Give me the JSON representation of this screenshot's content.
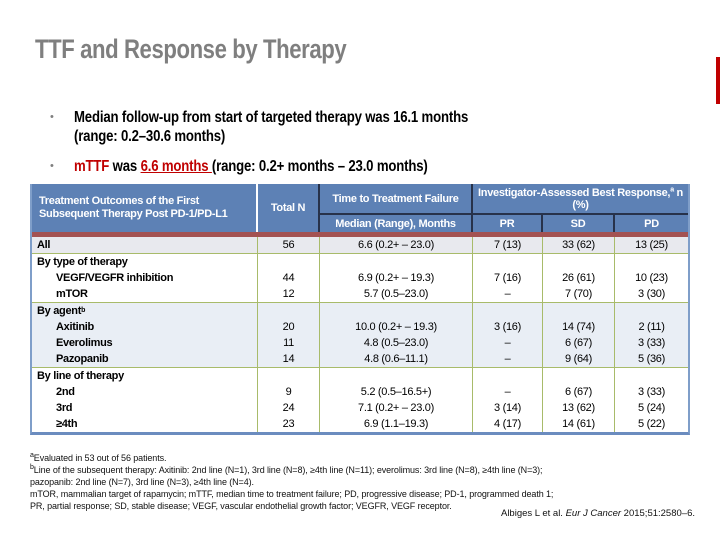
{
  "title": "TTF and Response by Therapy",
  "bullets": {
    "b1_line1": "Median follow-up from start of targeted therapy was 16.1 months",
    "b1_line2": "(range: 0.2–30.6 months)",
    "b2_red": "mTTF",
    "b2_mid": " was ",
    "b2_hl": "6.6 months ",
    "b2_rest": "(range: 0.2+ months – 23.0 months)",
    "marker": "•"
  },
  "table": {
    "header": {
      "col1": "Treatment Outcomes of the First Subsequent Therapy Post PD-1/PD-L1",
      "total_n": "Total N",
      "ttf_group": "Time to Treatment Failure",
      "ttf_sub": "Median (Range), Months",
      "resp_group_1": "Investigator-Assessed Best Response,",
      "resp_sup": "a",
      "resp_group_2": " n",
      "resp_pct": "(%)",
      "pr": "PR",
      "sd": "SD",
      "pd": "PD"
    },
    "rows": [
      {
        "label": "All",
        "sup": "",
        "n": "56",
        "ttf": "6.6 (0.2+ – 23.0)",
        "pr": "7 (13)",
        "sd": "33 (62)",
        "pd": "13 (25)"
      },
      {
        "label": "By type of therapy",
        "sup": "",
        "n": "",
        "ttf": "",
        "pr": "",
        "sd": "",
        "pd": ""
      },
      {
        "label": "VEGF/VEGFR inhibition",
        "sup": "",
        "n": "44",
        "ttf": "6.9 (0.2+ – 19.3)",
        "pr": "7 (16)",
        "sd": "26 (61)",
        "pd": "10 (23)"
      },
      {
        "label": "mTOR",
        "sup": "",
        "n": "12",
        "ttf": "5.7 (0.5–23.0)",
        "pr": "–",
        "sd": "7 (70)",
        "pd": "3 (30)"
      },
      {
        "label": "By agent",
        "sup": "b",
        "n": "",
        "ttf": "",
        "pr": "",
        "sd": "",
        "pd": ""
      },
      {
        "label": "Axitinib",
        "sup": "",
        "n": "20",
        "ttf": "10.0 (0.2+ – 19.3)",
        "pr": "3 (16)",
        "sd": "14 (74)",
        "pd": "2 (11)"
      },
      {
        "label": "Everolimus",
        "sup": "",
        "n": "11",
        "ttf": "4.8 (0.5–23.0)",
        "pr": "–",
        "sd": "6 (67)",
        "pd": "3 (33)"
      },
      {
        "label": "Pazopanib",
        "sup": "",
        "n": "14",
        "ttf": "4.8 (0.6–11.1)",
        "pr": "–",
        "sd": "9 (64)",
        "pd": "5 (36)"
      },
      {
        "label": "By line of therapy",
        "sup": "",
        "n": "",
        "ttf": "",
        "pr": "",
        "sd": "",
        "pd": ""
      },
      {
        "label": "2nd",
        "sup": "",
        "n": "9",
        "ttf": "5.2 (0.5–16.5+)",
        "pr": "–",
        "sd": "6 (67)",
        "pd": "3 (33)"
      },
      {
        "label": "3rd",
        "sup": "",
        "n": "24",
        "ttf": "7.1 (0.2+ – 23.0)",
        "pr": "3 (14)",
        "sd": "13 (62)",
        "pd": "5 (24)"
      },
      {
        "label": "≥4th",
        "sup": "",
        "n": "23",
        "ttf": "6.9 (1.1–19.3)",
        "pr": "4 (17)",
        "sd": "14 (61)",
        "pd": "5 (22)"
      }
    ]
  },
  "footnotes": {
    "sup_a": "a",
    "line1": "Evaluated in 53 out of 56 patients.",
    "sup_b": "b",
    "line2": "Line of the subsequent therapy: Axitinib: 2nd line (N=1), 3rd line (N=8), ≥4th line (N=11); everolimus: 3rd line (N=8), ≥4th line (N=3);",
    "line3": "pazopanib: 2nd line (N=7), 3rd line (N=3), ≥4th line (N=4).",
    "line4": "mTOR, mammalian target of rapamycin; mTTF, median time to treatment failure; PD, progressive disease; PD-1, programmed death 1;",
    "line5": "PR, partial response; SD, stable disease; VEGF, vascular endothelial growth factor; VEGFR, VEGF receptor."
  },
  "citation": {
    "pre": "Albiges L et al. ",
    "journal": "Eur J Cancer",
    "post": " 2015;51:2580–6."
  },
  "colors": {
    "accent_red": "#c00000",
    "header_blue": "#5d81b5",
    "band_red": "#a35252",
    "border_olive": "#a8bb6a",
    "outer_blue": "#7f9ec9",
    "shade_blue": "#e9eef5",
    "shade_gray": "#e8e9ee",
    "title_gray": "#7f7f7f"
  }
}
